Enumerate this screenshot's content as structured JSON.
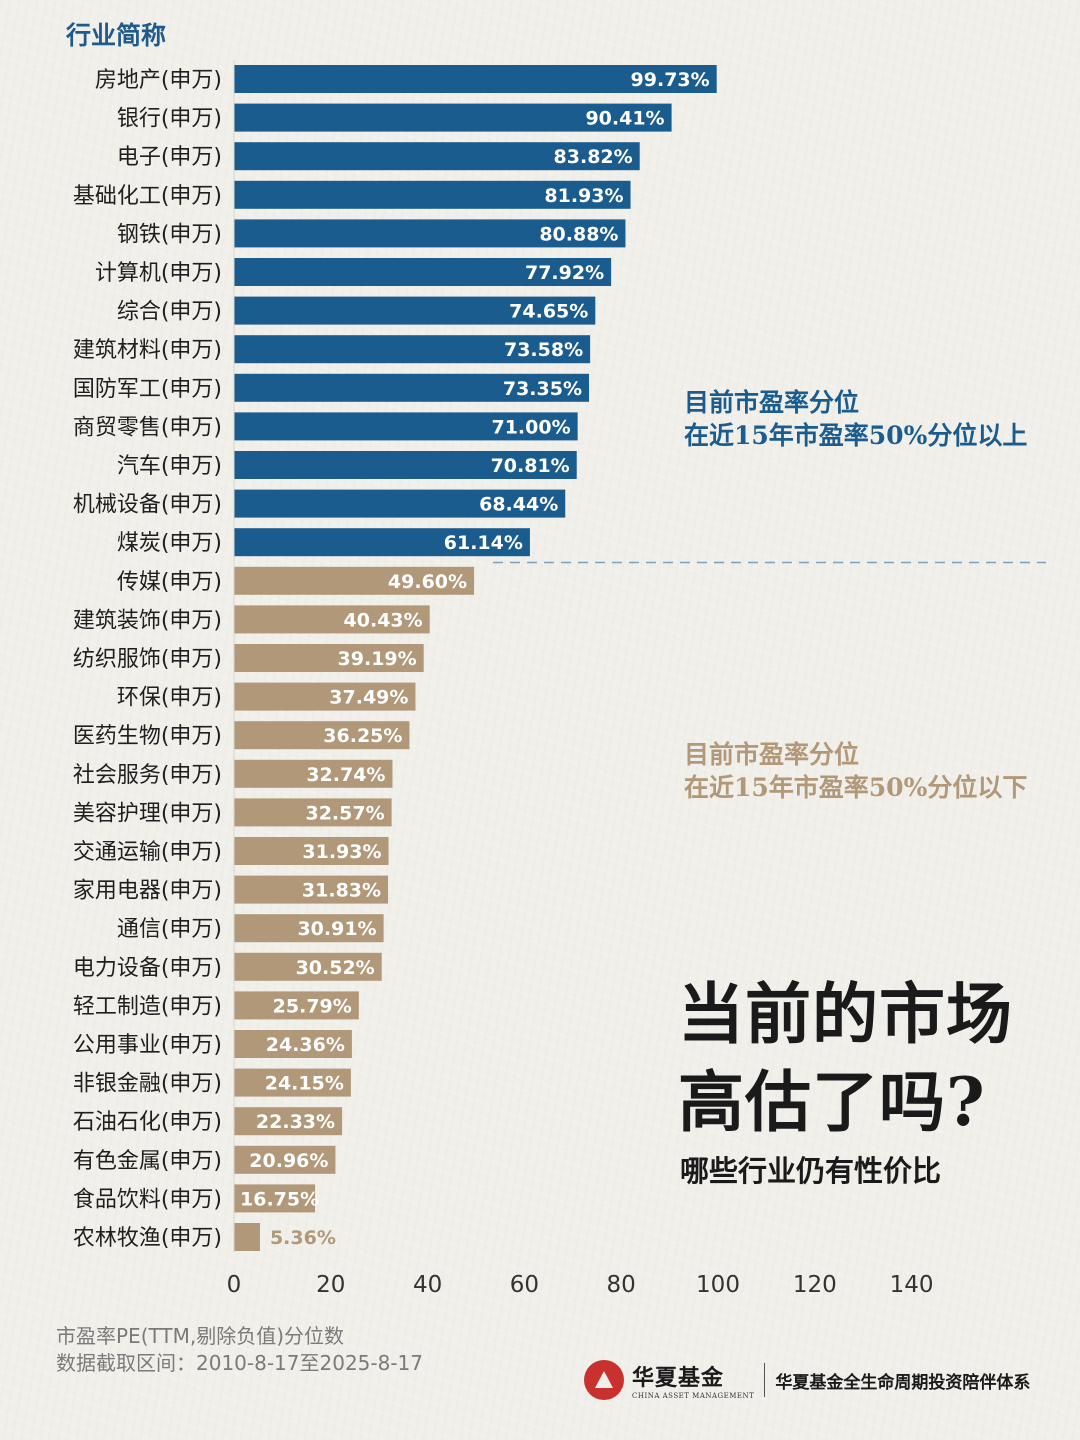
{
  "header": {
    "column_title": "行业简称"
  },
  "annotations": {
    "above": [
      "目前市盈率分位",
      "在近15年市盈率50%分位以上"
    ],
    "below": [
      "目前市盈率分位",
      "在近15年市盈率50%分位以下"
    ]
  },
  "headline": {
    "line1": "当前的市场",
    "line2": "高估了吗?",
    "subtitle": "哪些行业仍有性价比"
  },
  "footnotes": {
    "line1": "市盈率PE(TTM,剔除负值)分位数",
    "line2": "数据截取区间：2010-8-17至2025-8-17"
  },
  "brand": {
    "name": "华夏基金",
    "english": "CHINA ASSET MANAGEMENT",
    "slogan": "华夏基金全生命周期投资陪伴体系"
  },
  "colors": {
    "above": "#1b5c8e",
    "below": "#b09878",
    "divider": "#7aa0c4"
  },
  "chart_data": {
    "type": "bar",
    "orientation": "horizontal",
    "categories": [
      "房地产(申万)",
      "银行(申万)",
      "电子(申万)",
      "基础化工(申万)",
      "钢铁(申万)",
      "计算机(申万)",
      "综合(申万)",
      "建筑材料(申万)",
      "国防军工(申万)",
      "商贸零售(申万)",
      "汽车(申万)",
      "机械设备(申万)",
      "煤炭(申万)",
      "传媒(申万)",
      "建筑装饰(申万)",
      "纺织服饰(申万)",
      "环保(申万)",
      "医药生物(申万)",
      "社会服务(申万)",
      "美容护理(申万)",
      "交通运输(申万)",
      "家用电器(申万)",
      "通信(申万)",
      "电力设备(申万)",
      "轻工制造(申万)",
      "公用事业(申万)",
      "非银金融(申万)",
      "石油石化(申万)",
      "有色金属(申万)",
      "食品饮料(申万)",
      "农林牧渔(申万)"
    ],
    "values": [
      99.73,
      90.41,
      83.82,
      81.93,
      80.88,
      77.92,
      74.65,
      73.58,
      73.35,
      71.0,
      70.81,
      68.44,
      61.14,
      49.6,
      40.43,
      39.19,
      37.49,
      36.25,
      32.74,
      32.57,
      31.93,
      31.83,
      30.91,
      30.52,
      25.79,
      24.36,
      24.15,
      22.33,
      20.96,
      16.75,
      5.36
    ],
    "labels": [
      "99.73%",
      "90.41%",
      "83.82%",
      "81.93%",
      "80.88%",
      "77.92%",
      "74.65%",
      "73.58%",
      "73.35%",
      "71.00%",
      "70.81%",
      "68.44%",
      "61.14%",
      "49.60%",
      "40.43%",
      "39.19%",
      "37.49%",
      "36.25%",
      "32.74%",
      "32.57%",
      "31.93%",
      "31.83%",
      "30.91%",
      "30.52%",
      "25.79%",
      "24.36%",
      "24.15%",
      "22.33%",
      "20.96%",
      "16.75%",
      "5.36%"
    ],
    "xticks": [
      "0",
      "20",
      "40",
      "60",
      "80",
      "100",
      "120",
      "140"
    ],
    "xlim": [
      0,
      140
    ],
    "threshold": 50,
    "grid": false
  }
}
